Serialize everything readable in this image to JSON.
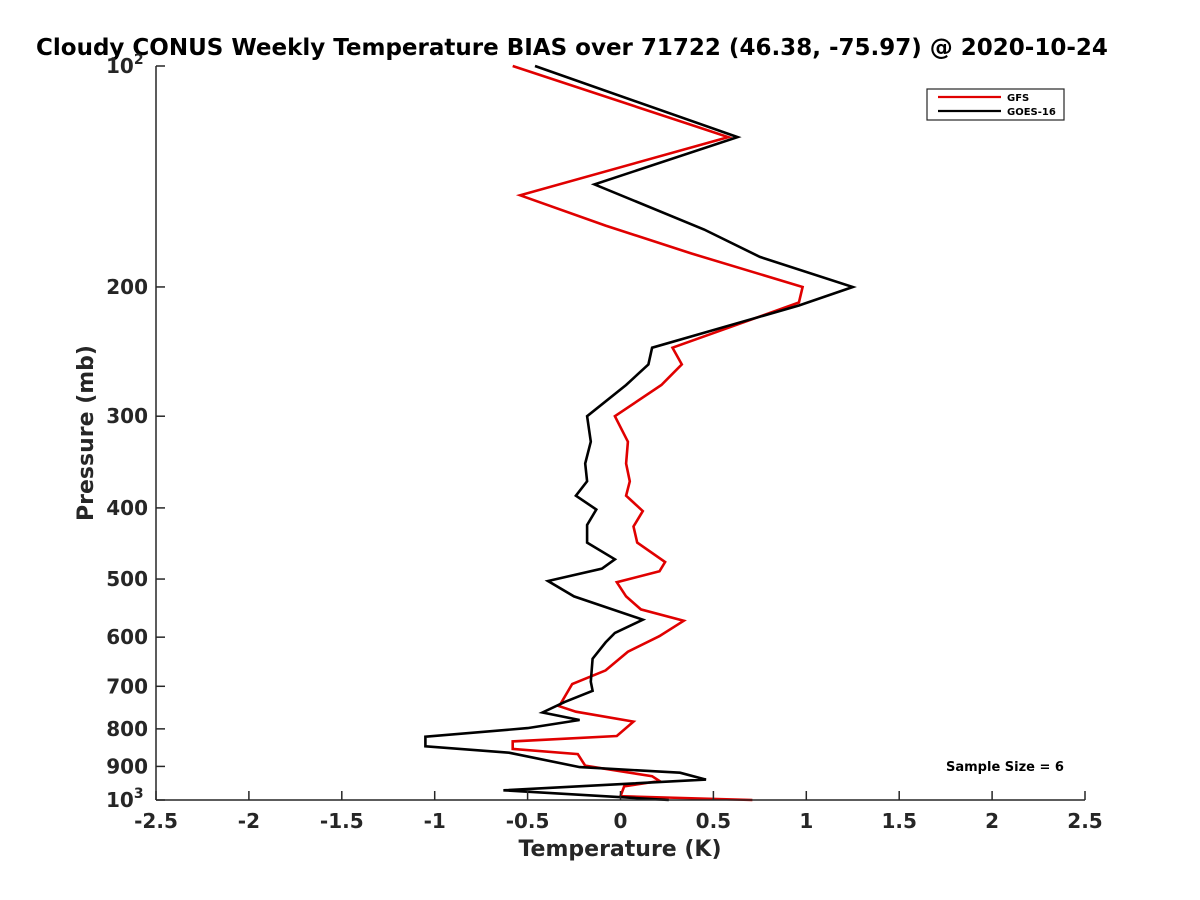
{
  "chart_data": {
    "type": "line",
    "title": "Cloudy CONUS Weekly Temperature BIAS over 71722 (46.38, -75.97) @ 2020-10-24",
    "xlabel": "Temperature (K)",
    "ylabel": "Pressure (mb)",
    "xlim": [
      -2.5,
      2.5
    ],
    "ylim": [
      100,
      1000
    ],
    "y_scale": "log",
    "y_reversed": true,
    "grid": false,
    "legend_position": "top-right",
    "x_ticks": [
      -2.5,
      -2,
      -1.5,
      -1,
      -0.5,
      0,
      0.5,
      1,
      1.5,
      2,
      2.5
    ],
    "x_tick_labels": [
      "-2.5",
      "-2",
      "-1.5",
      "-1",
      "-0.5",
      "0",
      "0.5",
      "1",
      "1.5",
      "2",
      "2.5"
    ],
    "y_ticks": [
      100,
      200,
      300,
      400,
      500,
      600,
      700,
      800,
      900,
      1000
    ],
    "y_tick_labels": [
      {
        "base": "10",
        "exp": "2"
      },
      {
        "base": "200",
        "exp": ""
      },
      {
        "base": "300",
        "exp": ""
      },
      {
        "base": "400",
        "exp": ""
      },
      {
        "base": "500",
        "exp": ""
      },
      {
        "base": "600",
        "exp": ""
      },
      {
        "base": "700",
        "exp": ""
      },
      {
        "base": "800",
        "exp": ""
      },
      {
        "base": "900",
        "exp": ""
      },
      {
        "base": "10",
        "exp": "3"
      }
    ],
    "annotation": "Sample Size = 6",
    "series": [
      {
        "name": "GFS",
        "color": "#e00000",
        "points": [
          [
            -0.58,
            100
          ],
          [
            0.58,
            125
          ],
          [
            -0.54,
            150
          ],
          [
            -0.08,
            165
          ],
          [
            0.38,
            180
          ],
          [
            0.98,
            200
          ],
          [
            0.96,
            210
          ],
          [
            0.28,
            242
          ],
          [
            0.33,
            255
          ],
          [
            0.22,
            272
          ],
          [
            -0.03,
            300
          ],
          [
            0.04,
            325
          ],
          [
            0.03,
            348
          ],
          [
            0.05,
            368
          ],
          [
            0.03,
            385
          ],
          [
            0.12,
            404
          ],
          [
            0.07,
            424
          ],
          [
            0.09,
            446
          ],
          [
            0.24,
            474
          ],
          [
            0.21,
            488
          ],
          [
            -0.02,
            505
          ],
          [
            0.03,
            528
          ],
          [
            0.11,
            550
          ],
          [
            0.34,
            570
          ],
          [
            0.21,
            598
          ],
          [
            0.04,
            628
          ],
          [
            -0.08,
            666
          ],
          [
            -0.26,
            695
          ],
          [
            -0.33,
            745
          ],
          [
            -0.24,
            758
          ],
          [
            0.07,
            782
          ],
          [
            -0.02,
            818
          ],
          [
            -0.58,
            832
          ],
          [
            -0.58,
            852
          ],
          [
            -0.23,
            866
          ],
          [
            -0.19,
            898
          ],
          [
            0.17,
            928
          ],
          [
            0.21,
            942
          ],
          [
            0.02,
            958
          ],
          [
            0.0,
            988
          ],
          [
            0.71,
            1000
          ]
        ]
      },
      {
        "name": "GOES-16",
        "color": "#000000",
        "points": [
          [
            -0.46,
            100
          ],
          [
            0.63,
            125
          ],
          [
            -0.14,
            145
          ],
          [
            0.45,
            167
          ],
          [
            0.75,
            182
          ],
          [
            1.25,
            200
          ],
          [
            0.96,
            212
          ],
          [
            0.17,
            242
          ],
          [
            0.15,
            255
          ],
          [
            0.03,
            272
          ],
          [
            -0.18,
            300
          ],
          [
            -0.16,
            325
          ],
          [
            -0.19,
            348
          ],
          [
            -0.18,
            368
          ],
          [
            -0.24,
            385
          ],
          [
            -0.13,
            402
          ],
          [
            -0.18,
            422
          ],
          [
            -0.18,
            446
          ],
          [
            -0.03,
            470
          ],
          [
            -0.1,
            484
          ],
          [
            -0.39,
            503
          ],
          [
            -0.25,
            528
          ],
          [
            0.12,
            568
          ],
          [
            -0.03,
            592
          ],
          [
            -0.08,
            610
          ],
          [
            -0.15,
            642
          ],
          [
            -0.16,
            690
          ],
          [
            -0.15,
            710
          ],
          [
            -0.3,
            735
          ],
          [
            -0.42,
            760
          ],
          [
            -0.22,
            778
          ],
          [
            -0.5,
            798
          ],
          [
            -1.05,
            820
          ],
          [
            -1.05,
            845
          ],
          [
            -0.6,
            862
          ],
          [
            -0.22,
            902
          ],
          [
            0.32,
            918
          ],
          [
            0.46,
            938
          ],
          [
            -0.63,
            970
          ],
          [
            0.26,
            1000
          ]
        ]
      }
    ]
  }
}
